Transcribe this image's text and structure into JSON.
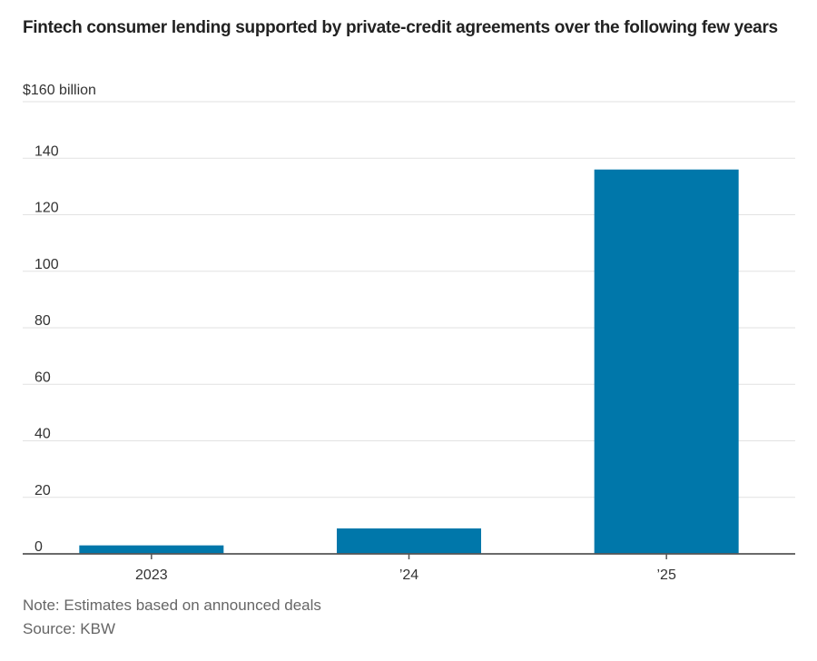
{
  "chart_data": {
    "type": "bar",
    "title": "Fintech consumer lending supported by private-credit agreements over the following few years",
    "unit_label": "$160 billion",
    "xlabel": "",
    "ylabel": "",
    "categories": [
      "2023",
      "’24",
      "’25"
    ],
    "values": [
      3,
      9,
      136
    ],
    "ylim": [
      0,
      160
    ],
    "yticks": [
      0,
      20,
      40,
      60,
      80,
      100,
      120,
      140,
      160
    ],
    "ytick_labels": [
      "0",
      "20",
      "40",
      "60",
      "80",
      "100",
      "120",
      "140",
      "$160 billion"
    ],
    "grid": true,
    "bar_color": "#0077aa",
    "note": "Note: Estimates based on announced deals",
    "source": "Source: KBW"
  }
}
